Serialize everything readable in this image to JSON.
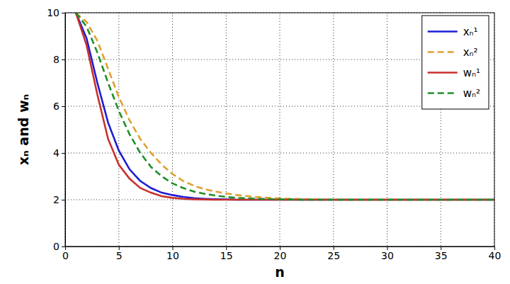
{
  "chart_data": {
    "type": "line",
    "x_label": "n",
    "y_label": "xₙ and wₙ",
    "x": [
      1,
      2,
      3,
      4,
      5,
      6,
      7,
      8,
      9,
      10,
      11,
      12,
      13,
      14,
      15,
      16,
      17,
      18,
      19,
      20,
      21,
      22,
      23,
      24,
      25,
      26,
      27,
      28,
      29,
      30,
      31,
      32,
      33,
      34,
      35,
      36,
      37,
      38,
      39,
      40
    ],
    "series": [
      {
        "name": "xₙ¹",
        "color": "#1c1cd6",
        "line_style": "solid",
        "values": [
          10,
          8.9,
          7.0,
          5.3,
          4.1,
          3.3,
          2.8,
          2.5,
          2.3,
          2.2,
          2.12,
          2.07,
          2.04,
          2.02,
          2.01,
          2,
          2,
          2,
          2,
          2,
          2,
          2,
          2,
          2,
          2,
          2,
          2,
          2,
          2,
          2,
          2,
          2,
          2,
          2,
          2,
          2,
          2,
          2,
          2,
          2
        ]
      },
      {
        "name": "xₙ²",
        "color": "#e0a030",
        "line_style": "dashed",
        "values": [
          10,
          9.6,
          8.8,
          7.6,
          6.4,
          5.4,
          4.6,
          4.0,
          3.5,
          3.1,
          2.8,
          2.6,
          2.45,
          2.35,
          2.27,
          2.2,
          2.15,
          2.11,
          2.08,
          2.06,
          2.04,
          2.03,
          2.02,
          2.01,
          2,
          2,
          2,
          2,
          2,
          2,
          2,
          2,
          2,
          2,
          2,
          2,
          2,
          2,
          2,
          2
        ]
      },
      {
        "name": "wₙ¹",
        "color": "#c8302a",
        "line_style": "solid",
        "values": [
          10,
          8.6,
          6.5,
          4.6,
          3.5,
          2.9,
          2.5,
          2.3,
          2.15,
          2.08,
          2.04,
          2.02,
          2.01,
          2,
          2,
          2,
          2,
          2,
          2,
          2,
          2,
          2,
          2,
          2,
          2,
          2,
          2,
          2,
          2,
          2,
          2,
          2,
          2,
          2,
          2,
          2,
          2,
          2,
          2,
          2
        ]
      },
      {
        "name": "wₙ²",
        "color": "#1f8f2a",
        "line_style": "dashed",
        "values": [
          10,
          9.4,
          8.3,
          7.0,
          5.8,
          4.8,
          4.0,
          3.4,
          3.0,
          2.7,
          2.5,
          2.35,
          2.25,
          2.18,
          2.12,
          2.08,
          2.06,
          2.04,
          2.03,
          2.02,
          2.01,
          2,
          2,
          2,
          2,
          2,
          2,
          2,
          2,
          2,
          2,
          2,
          2,
          2,
          2,
          2,
          2,
          2,
          2,
          2
        ]
      }
    ],
    "xlim": [
      0,
      40
    ],
    "xticks": [
      0,
      5,
      10,
      15,
      20,
      25,
      30,
      35,
      40
    ],
    "ylim": [
      0,
      10
    ],
    "yticks": [
      0,
      2,
      4,
      6,
      8,
      10
    ],
    "grid": true,
    "legend": "top-right"
  }
}
